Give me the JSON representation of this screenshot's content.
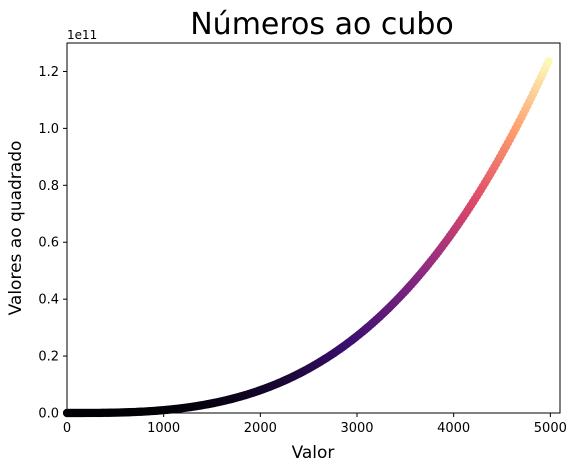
{
  "chart_data": {
    "type": "scatter",
    "title": "Números ao cubo",
    "xlabel": "Valor",
    "ylabel": "Valores ao quadrado",
    "xlim": [
      0,
      5100
    ],
    "ylim": [
      0,
      130000000000.0
    ],
    "y_offset_label": "1e11",
    "x_ticks": [
      0,
      1000,
      2000,
      3000,
      4000,
      5000
    ],
    "x_tick_labels": [
      "0",
      "1000",
      "2000",
      "3000",
      "4000",
      "5000"
    ],
    "y_ticks": [
      0,
      20000000000.0,
      40000000000.0,
      60000000000.0,
      80000000000.0,
      100000000000.0,
      120000000000.0
    ],
    "y_tick_labels": [
      "0.0",
      "0.2",
      "0.4",
      "0.6",
      "0.8",
      "1.0",
      "1.2"
    ],
    "series": [
      {
        "x_range": [
          1,
          5000
        ],
        "function": "y = x^3",
        "colormap": "magma"
      }
    ],
    "grid": false,
    "colors": {
      "colormap_stops": [
        "#000004",
        "#3b0f70",
        "#8c2981",
        "#de4968",
        "#fe9f6d",
        "#fcfdbf"
      ]
    }
  }
}
